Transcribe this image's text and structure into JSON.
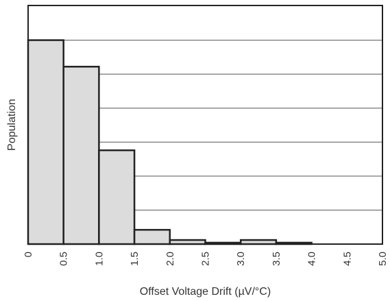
{
  "chart_data": {
    "type": "bar",
    "title": "",
    "xlabel": "Offset Voltage Drift (µV/°C)",
    "ylabel": "Population",
    "bins": [
      {
        "start": 0.0,
        "end": 0.5,
        "value": 100
      },
      {
        "start": 0.5,
        "end": 1.0,
        "value": 87
      },
      {
        "start": 1.0,
        "end": 1.5,
        "value": 46
      },
      {
        "start": 1.5,
        "end": 2.0,
        "value": 7
      },
      {
        "start": 2.0,
        "end": 2.5,
        "value": 2
      },
      {
        "start": 2.5,
        "end": 3.0,
        "value": 0.7
      },
      {
        "start": 3.0,
        "end": 3.5,
        "value": 2
      },
      {
        "start": 3.5,
        "end": 4.0,
        "value": 0.7
      },
      {
        "start": 4.0,
        "end": 4.5,
        "value": 0
      },
      {
        "start": 4.5,
        "end": 5.0,
        "value": 0
      }
    ],
    "xticks": [
      "0",
      "0.5",
      "1.0",
      "1.5",
      "2.0",
      "2.5",
      "3.0",
      "3.5",
      "4.0",
      "4.5",
      "5.0"
    ],
    "xlim": [
      0,
      5
    ],
    "ylim": [
      0,
      117
    ],
    "ygrid": [
      16.67,
      33.33,
      50,
      66.67,
      83.33,
      100
    ],
    "grid": "horizontal",
    "bar_fill": "#dcdcdc",
    "bar_stroke": "#222222",
    "grid_color": "#555555",
    "legend": "none"
  }
}
